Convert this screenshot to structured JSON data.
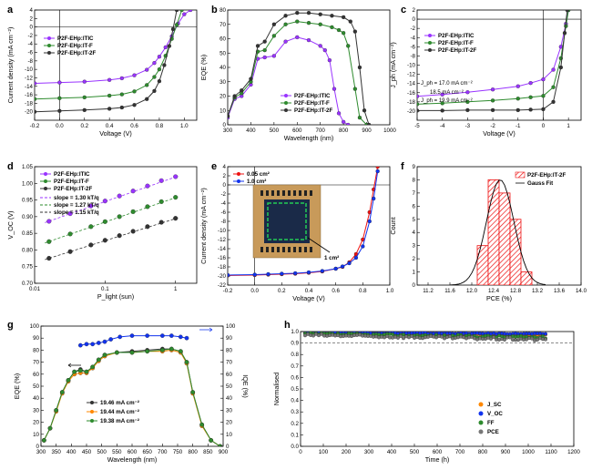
{
  "colors": {
    "purple": "#9933ff",
    "green": "#2e8b2e",
    "black": "#333333",
    "red": "#ee1111",
    "blue": "#1133ee",
    "orange": "#ff8800",
    "grey": "#777777"
  },
  "chart_data": [
    {
      "panel": "a",
      "type": "line",
      "xlabel": "Voltage (V)",
      "ylabel": "Current density (mA cm⁻²)",
      "xlim": [
        -0.2,
        1.1
      ],
      "ylim": [
        -22,
        4
      ],
      "xticks": [
        "-0.2",
        "0.0",
        "0.2",
        "0.4",
        "0.6",
        "0.8",
        "1.0"
      ],
      "yticks": [
        "4",
        "2",
        "0",
        "-2",
        "-4",
        "-6",
        "-8",
        "-10",
        "-12",
        "-14",
        "-16",
        "-18",
        "-20"
      ],
      "legend": "top-left",
      "series": [
        {
          "name": "P2F-EHp:ITIC",
          "color": "#9933ff",
          "marker": "circle",
          "x": [
            -0.2,
            0,
            0.2,
            0.4,
            0.5,
            0.6,
            0.7,
            0.76,
            0.8,
            0.85,
            0.9,
            0.95,
            1.0,
            1.05
          ],
          "y": [
            -13.3,
            -13.1,
            -12.9,
            -12.5,
            -12.1,
            -11.4,
            -10.1,
            -8.5,
            -7.0,
            -4.8,
            -2.2,
            0.8,
            3.0,
            4.0
          ]
        },
        {
          "name": "P2F-EHp:IT-F",
          "color": "#2e8b2e",
          "marker": "circle",
          "x": [
            -0.2,
            0,
            0.2,
            0.4,
            0.5,
            0.6,
            0.7,
            0.76,
            0.8,
            0.85,
            0.9,
            0.94,
            0.98
          ],
          "y": [
            -17.0,
            -16.8,
            -16.6,
            -16.2,
            -15.9,
            -15.2,
            -13.7,
            -11.8,
            -10.0,
            -6.8,
            -2.8,
            0.5,
            4.0
          ]
        },
        {
          "name": "P2F-EHp:IT-2F",
          "color": "#333333",
          "marker": "circle",
          "x": [
            -0.2,
            0,
            0.2,
            0.4,
            0.5,
            0.6,
            0.7,
            0.76,
            0.8,
            0.84,
            0.88,
            0.91,
            0.94
          ],
          "y": [
            -20.0,
            -19.8,
            -19.6,
            -19.3,
            -19.0,
            -18.4,
            -17.0,
            -15.1,
            -12.8,
            -9.0,
            -4.5,
            -0.5,
            4.0
          ]
        }
      ]
    },
    {
      "panel": "b",
      "type": "line",
      "xlabel": "Wavelength (nm)",
      "ylabel": "EQE (%)",
      "xlim": [
        300,
        1000
      ],
      "ylim": [
        0,
        80
      ],
      "xticks": [
        "300",
        "400",
        "500",
        "600",
        "700",
        "800",
        "900",
        "1000"
      ],
      "yticks": [
        "0",
        "10",
        "20",
        "30",
        "40",
        "50",
        "60",
        "70",
        "80"
      ],
      "legend": "center",
      "series": [
        {
          "name": "P2F-EHp:ITIC",
          "color": "#9933ff",
          "marker": "circle",
          "x": [
            300,
            330,
            360,
            400,
            430,
            460,
            500,
            550,
            600,
            650,
            700,
            720,
            740,
            760,
            780,
            800,
            820
          ],
          "y": [
            5,
            18,
            20,
            28,
            46,
            47,
            48,
            58,
            61,
            59,
            55,
            52,
            45,
            25,
            8,
            2,
            0
          ]
        },
        {
          "name": "P2F-EHp:IT-F",
          "color": "#2e8b2e",
          "marker": "circle",
          "x": [
            300,
            330,
            360,
            400,
            430,
            460,
            500,
            550,
            600,
            650,
            700,
            750,
            780,
            800,
            820,
            850,
            870,
            900
          ],
          "y": [
            6,
            19,
            22,
            30,
            51,
            52,
            62,
            70,
            72,
            71,
            70,
            68,
            66,
            64,
            55,
            25,
            5,
            0
          ]
        },
        {
          "name": "P2F-EHp:IT-2F",
          "color": "#333333",
          "marker": "circle",
          "x": [
            300,
            330,
            360,
            400,
            430,
            460,
            500,
            550,
            600,
            650,
            700,
            750,
            800,
            830,
            850,
            870,
            890,
            910
          ],
          "y": [
            6,
            20,
            24,
            32,
            55,
            58,
            70,
            76,
            78,
            78,
            77,
            76,
            75,
            72,
            65,
            40,
            10,
            0
          ]
        }
      ]
    },
    {
      "panel": "c",
      "type": "line",
      "xlabel": "Voltage (V)",
      "ylabel": "J_ph (mA cm⁻²)",
      "xlim": [
        -5,
        1.5
      ],
      "ylim": [
        -22,
        2
      ],
      "xticks": [
        "-5",
        "-4",
        "-3",
        "-2",
        "-1",
        "0",
        "1"
      ],
      "yticks": [
        "2",
        "0",
        "-2",
        "-4",
        "-6",
        "-8",
        "-10",
        "-12",
        "-14",
        "-16",
        "-18",
        "-20"
      ],
      "legend": "top-left",
      "annotations": [
        "J_ph = 17.0 mA cm⁻²",
        "18.5 mA cm⁻²",
        "J_ph = 19.9 mA cm⁻²"
      ],
      "series": [
        {
          "name": "P2F-EHp:ITIC",
          "color": "#9933ff",
          "marker": "circle",
          "x": [
            -5,
            -4,
            -3,
            -2,
            -1,
            -0.5,
            0,
            0.4,
            0.7,
            0.9,
            1.0
          ],
          "y": [
            -16.8,
            -16.4,
            -15.9,
            -15.3,
            -14.6,
            -13.9,
            -13.1,
            -11.0,
            -6.0,
            -1.0,
            2.0
          ]
        },
        {
          "name": "P2F-EHp:IT-F",
          "color": "#2e8b2e",
          "marker": "circle",
          "x": [
            -5,
            -4,
            -3,
            -2,
            -1,
            -0.5,
            0,
            0.4,
            0.7,
            0.9,
            1.0
          ],
          "y": [
            -18.5,
            -18.3,
            -18.0,
            -17.7,
            -17.3,
            -17.0,
            -16.7,
            -14.8,
            -8.5,
            -1.5,
            2.0
          ]
        },
        {
          "name": "P2F-EHp:IT-2F",
          "color": "#333333",
          "marker": "circle",
          "x": [
            -5,
            -4,
            -3,
            -2,
            -1,
            -0.5,
            0,
            0.4,
            0.7,
            0.85,
            0.95
          ],
          "y": [
            -19.9,
            -19.9,
            -19.8,
            -19.8,
            -19.8,
            -19.7,
            -19.6,
            -18.0,
            -10.5,
            -3.0,
            2.0
          ]
        }
      ]
    },
    {
      "panel": "d",
      "type": "scatter",
      "xlabel": "P_light (sun)",
      "ylabel": "V_OC (V)",
      "xscale": "log",
      "xlim": [
        0.01,
        2
      ],
      "ylim": [
        0.7,
        1.05
      ],
      "xticks": [
        "0.01",
        "0.1",
        "1"
      ],
      "yticks": [
        "0.70",
        "0.75",
        "0.80",
        "0.85",
        "0.90",
        "0.95",
        "1.00",
        "1.05"
      ],
      "legend": "top-left",
      "series": [
        {
          "name": "P2F-EHp:ITIC",
          "color": "#9933ff",
          "slope_label": "slope = 1.30 kT/q",
          "x": [
            0.016,
            0.032,
            0.063,
            0.1,
            0.16,
            0.25,
            0.4,
            0.63,
            1.0
          ],
          "y": [
            0.886,
            0.909,
            0.932,
            0.947,
            0.962,
            0.977,
            0.992,
            1.008,
            1.02
          ]
        },
        {
          "name": "P2F-EHp:IT-F",
          "color": "#2e8b2e",
          "slope_label": "slope = 1.27 kT/q",
          "x": [
            0.016,
            0.032,
            0.063,
            0.1,
            0.16,
            0.25,
            0.4,
            0.63,
            1.0
          ],
          "y": [
            0.825,
            0.848,
            0.87,
            0.885,
            0.9,
            0.915,
            0.93,
            0.945,
            0.958
          ]
        },
        {
          "name": "P2F-EHp:IT-2F",
          "color": "#333333",
          "slope_label": "slope = 1.15 kT/q",
          "x": [
            0.016,
            0.032,
            0.063,
            0.1,
            0.16,
            0.25,
            0.4,
            0.63,
            1.0
          ],
          "y": [
            0.775,
            0.795,
            0.815,
            0.829,
            0.843,
            0.856,
            0.87,
            0.883,
            0.895
          ]
        }
      ]
    },
    {
      "panel": "e",
      "type": "line",
      "xlabel": "Voltage (V)",
      "ylabel": "Current density (mA cm⁻²)",
      "xlim": [
        -0.2,
        1.0
      ],
      "ylim": [
        -22,
        4
      ],
      "xticks": [
        "-0.2",
        "0.0",
        "0.2",
        "0.4",
        "0.6",
        "0.8",
        "1.0"
      ],
      "yticks": [
        "4",
        "2",
        "0",
        "-2",
        "-4",
        "-6",
        "-8",
        "-10",
        "-12",
        "-14",
        "-16",
        "-18",
        "-20",
        "-22"
      ],
      "legend": "top-left",
      "inset_label": "1 cm²",
      "series": [
        {
          "name": "0.05 cm²",
          "color": "#ee1111",
          "marker": "circle",
          "x": [
            -0.2,
            0,
            0.1,
            0.2,
            0.3,
            0.4,
            0.5,
            0.6,
            0.65,
            0.7,
            0.75,
            0.8,
            0.85,
            0.88,
            0.91
          ],
          "y": [
            -19.9,
            -19.8,
            -19.7,
            -19.6,
            -19.5,
            -19.3,
            -19.0,
            -18.4,
            -18.0,
            -17.0,
            -15.2,
            -12.0,
            -6.0,
            -1.0,
            4.0
          ]
        },
        {
          "name": "1.0 cm²",
          "color": "#1133ee",
          "marker": "circle",
          "x": [
            -0.2,
            0,
            0.1,
            0.2,
            0.3,
            0.4,
            0.5,
            0.6,
            0.65,
            0.7,
            0.75,
            0.8,
            0.85,
            0.88,
            0.91
          ],
          "y": [
            -19.8,
            -19.7,
            -19.6,
            -19.5,
            -19.4,
            -19.2,
            -18.9,
            -18.4,
            -17.9,
            -17.2,
            -16.0,
            -13.5,
            -8.0,
            -3.0,
            3.0
          ]
        }
      ]
    },
    {
      "panel": "f",
      "type": "bar",
      "xlabel": "PCE (%)",
      "ylabel": "Count",
      "xlim": [
        11.0,
        14.0
      ],
      "ylim": [
        0,
        9
      ],
      "xticks": [
        "11.2",
        "11.6",
        "12.0",
        "12.4",
        "12.8",
        "13.2",
        "13.6",
        "14.0"
      ],
      "yticks": [
        "0",
        "1",
        "2",
        "3",
        "4",
        "5",
        "6",
        "7",
        "8",
        "9"
      ],
      "legend": "top-right",
      "series": [
        {
          "name": "P2F-EHp:IT-2F",
          "color": "#ee1111",
          "x": [
            12.2,
            12.4,
            12.6,
            12.8,
            13.0
          ],
          "y": [
            3,
            8,
            7,
            5,
            1
          ]
        },
        {
          "name": "Gauss Fit",
          "color": "#000000",
          "type": "gauss",
          "mu": 12.52,
          "sigma": 0.25,
          "peak": 8.0
        }
      ]
    },
    {
      "panel": "g",
      "type": "line",
      "xlabel": "Wavelength (nm)",
      "ylabel": "EQE (%)",
      "ylabel2": "IQE (%)",
      "xlim": [
        300,
        900
      ],
      "ylim": [
        0,
        100
      ],
      "ylim2": [
        0,
        100
      ],
      "xticks": [
        "300",
        "350",
        "400",
        "450",
        "500",
        "550",
        "600",
        "650",
        "700",
        "750",
        "800",
        "850",
        "900"
      ],
      "yticks": [
        "0",
        "10",
        "20",
        "30",
        "40",
        "50",
        "60",
        "70",
        "80",
        "90",
        "100"
      ],
      "legend": "bottom-center",
      "series": [
        {
          "name": "19.46 mA cm⁻²",
          "color": "#333333",
          "marker": "circle",
          "x": [
            310,
            330,
            350,
            370,
            390,
            410,
            430,
            450,
            470,
            490,
            510,
            550,
            600,
            650,
            700,
            730,
            760,
            780,
            800,
            830,
            860,
            890
          ],
          "y": [
            5,
            15,
            30,
            45,
            55,
            62,
            64,
            62,
            66,
            72,
            76,
            78,
            79,
            80,
            81,
            81,
            79,
            70,
            45,
            18,
            5,
            0
          ]
        },
        {
          "name": "19.44 mA cm⁻²",
          "color": "#ff8800",
          "marker": "circle",
          "x": [
            310,
            330,
            350,
            370,
            390,
            410,
            430,
            450,
            470,
            490,
            510,
            550,
            600,
            650,
            700,
            730,
            760,
            780,
            800,
            830,
            860,
            890
          ],
          "y": [
            5,
            15,
            29,
            44,
            54,
            60,
            61,
            61,
            65,
            71,
            75,
            78,
            78,
            79,
            79,
            80,
            78,
            69,
            44,
            17,
            5,
            0
          ]
        },
        {
          "name": "19.38 mA cm⁻²",
          "color": "#2e8b2e",
          "marker": "circle",
          "x": [
            310,
            330,
            350,
            370,
            390,
            410,
            430,
            450,
            470,
            490,
            510,
            550,
            600,
            650,
            700,
            730,
            760,
            780,
            800,
            830,
            860,
            890
          ],
          "y": [
            5,
            15,
            30,
            45,
            55,
            62,
            63,
            62,
            66,
            72,
            76,
            78,
            78,
            79,
            80,
            81,
            79,
            70,
            45,
            18,
            5,
            0
          ]
        },
        {
          "name": "IQE",
          "color": "#1133ee",
          "marker": "circle",
          "axis": "right",
          "x": [
            430,
            450,
            470,
            490,
            510,
            530,
            560,
            600,
            650,
            700,
            730,
            760,
            780
          ],
          "y": [
            84,
            85,
            85,
            86,
            87,
            89,
            91,
            92,
            92,
            92,
            92,
            91,
            90
          ]
        }
      ]
    },
    {
      "panel": "h",
      "type": "scatter",
      "xlabel": "Time (h)",
      "ylabel": "Normalised",
      "xlim": [
        0,
        1200
      ],
      "ylim": [
        0,
        1.0
      ],
      "xticks": [
        "0",
        "100",
        "200",
        "300",
        "400",
        "500",
        "600",
        "700",
        "800",
        "900",
        "1000",
        "1100",
        "1200"
      ],
      "yticks": [
        "0.0",
        "0.1",
        "0.2",
        "0.3",
        "0.4",
        "0.5",
        "0.6",
        "0.7",
        "0.8",
        "0.9",
        "1.0"
      ],
      "legend": "bottom-right",
      "reference_line": 0.9,
      "series": [
        {
          "name": "J_SC",
          "color": "#ff8800",
          "x": [
            0,
            1080
          ],
          "y": [
            0.99,
            0.97
          ]
        },
        {
          "name": "V_OC",
          "color": "#1133ee",
          "x": [
            0,
            1080
          ],
          "y": [
            0.99,
            0.98
          ]
        },
        {
          "name": "FF",
          "color": "#2e8b2e",
          "x": [
            0,
            1080
          ],
          "y": [
            0.98,
            0.95
          ]
        },
        {
          "name": "PCE",
          "color": "#777777",
          "x": [
            0,
            1080
          ],
          "y": [
            0.97,
            0.93
          ]
        }
      ]
    }
  ]
}
